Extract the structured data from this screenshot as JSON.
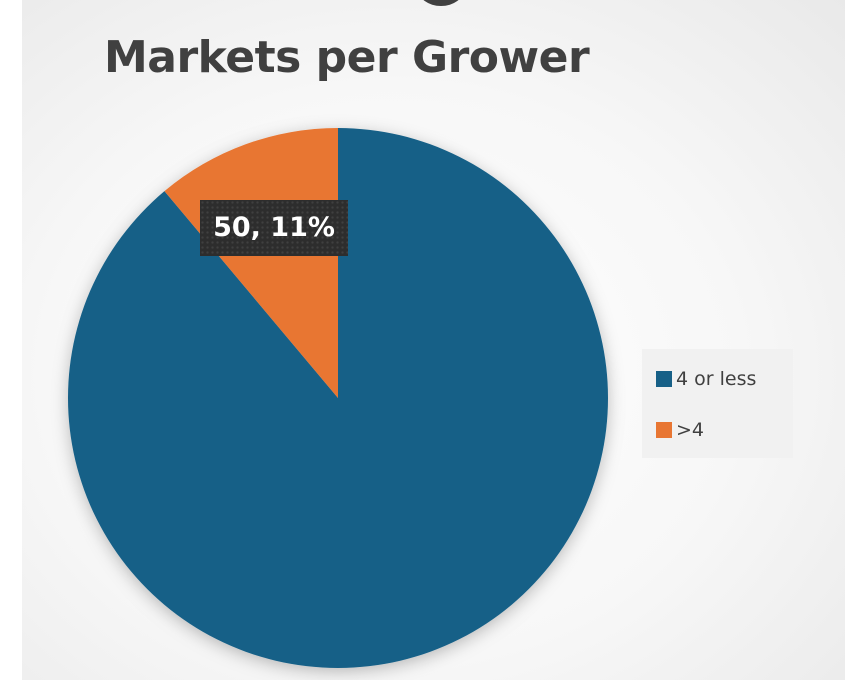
{
  "chart_data": {
    "type": "pie",
    "title": "Markets per Grower",
    "categories": [
      "4 or less",
      ">4"
    ],
    "values": [
      400,
      50
    ],
    "percentages": [
      89,
      11
    ],
    "colors": [
      "#176087",
      "#e87633"
    ],
    "start_angle_deg": 0,
    "direction": "counterclockwise-from-top for >4 slice",
    "data_labels": [
      {
        "category": ">4",
        "text": "50, 11%"
      }
    ],
    "legend": {
      "position": "right",
      "entries": [
        "4 or less",
        ">4"
      ]
    }
  }
}
